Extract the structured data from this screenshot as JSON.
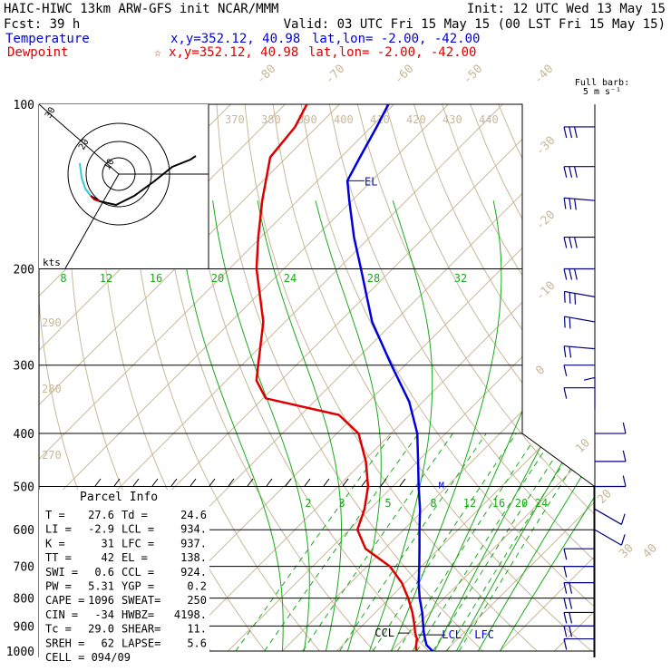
{
  "header": {
    "line1_left": "HAIC-HIWC 13km ARW-GFS init   NCAR/MMM",
    "line1_right": "Init: 12 UTC Wed 13 May 15",
    "line2_left": "Fcst:   39 h",
    "line2_right": "Valid: 03 UTC Fri 15 May 15 (00 LST Fri 15 May 15)",
    "temp_label": "Temperature",
    "temp_xy": "x,y=352.12, 40.98",
    "temp_latlon": "lat,lon= -2.00, -42.00",
    "dew_label": "Dewpoint",
    "dew_xy": "x,y=352.12, 40.98",
    "dew_latlon": "lat,lon= -2.00, -42.00",
    "star_glyph": "☆",
    "barb_note_1": "Full barb:",
    "barb_note_2": "5 m s⁻¹"
  },
  "colors": {
    "temperature": "#0000dd",
    "dewpoint": "#dd0000",
    "mixing_ratio": "#1aaa1a",
    "isotherm": "#c8b898",
    "gridline": "#000000",
    "barb": "#000080",
    "hodograph_tail": "#33cccc"
  },
  "chart_data": {
    "type": "line",
    "title": "Skew-T sounding",
    "ylabel": "",
    "yscale": "log",
    "ylim": [
      1000,
      100
    ],
    "pressure_ticks": [
      "100",
      "200",
      "300",
      "400",
      "500",
      "600",
      "700",
      "800",
      "900",
      "1000"
    ],
    "series": [
      {
        "name": "Temperature",
        "points": [
          {
            "p": 1000,
            "t": 27.6
          },
          {
            "p": 975,
            "t": 25.4
          },
          {
            "p": 950,
            "t": 24.0
          },
          {
            "p": 925,
            "t": 22.6
          },
          {
            "p": 900,
            "t": 21.3
          },
          {
            "p": 850,
            "t": 18.6
          },
          {
            "p": 800,
            "t": 15.5
          },
          {
            "p": 750,
            "t": 12.5
          },
          {
            "p": 700,
            "t": 9.6
          },
          {
            "p": 650,
            "t": 6.4
          },
          {
            "p": 600,
            "t": 2.9
          },
          {
            "p": 550,
            "t": -0.8
          },
          {
            "p": 500,
            "t": -5.2
          },
          {
            "p": 450,
            "t": -9.9
          },
          {
            "p": 400,
            "t": -15.2
          },
          {
            "p": 350,
            "t": -22.5
          },
          {
            "p": 300,
            "t": -32.5
          },
          {
            "p": 250,
            "t": -44.0
          },
          {
            "p": 200,
            "t": -55.8
          },
          {
            "p": 175,
            "t": -62.9
          },
          {
            "p": 150,
            "t": -70.5
          },
          {
            "p": 138,
            "t": -74.5
          },
          {
            "p": 125,
            "t": -76.5
          },
          {
            "p": 110,
            "t": -79.0
          },
          {
            "p": 100,
            "t": -81.0
          }
        ]
      },
      {
        "name": "Dewpoint",
        "points": [
          {
            "p": 1000,
            "t": 24.6
          },
          {
            "p": 975,
            "t": 23.5
          },
          {
            "p": 950,
            "t": 22.5
          },
          {
            "p": 925,
            "t": 21.0
          },
          {
            "p": 900,
            "t": 19.7
          },
          {
            "p": 850,
            "t": 16.8
          },
          {
            "p": 800,
            "t": 13.4
          },
          {
            "p": 750,
            "t": 9.4
          },
          {
            "p": 700,
            "t": 4.2
          },
          {
            "p": 650,
            "t": -3.5
          },
          {
            "p": 600,
            "t": -8.5
          },
          {
            "p": 550,
            "t": -11.0
          },
          {
            "p": 500,
            "t": -14.5
          },
          {
            "p": 450,
            "t": -19.5
          },
          {
            "p": 400,
            "t": -26.0
          },
          {
            "p": 370,
            "t": -33.0
          },
          {
            "p": 345,
            "t": -49.5
          },
          {
            "p": 320,
            "t": -54.5
          },
          {
            "p": 300,
            "t": -57.0
          },
          {
            "p": 250,
            "t": -64.0
          },
          {
            "p": 200,
            "t": -75.0
          },
          {
            "p": 175,
            "t": -80.5
          },
          {
            "p": 150,
            "t": -86.5
          },
          {
            "p": 125,
            "t": -93.0
          },
          {
            "p": 110,
            "t": -94.0
          },
          {
            "p": 100,
            "t": -96.0
          }
        ]
      }
    ],
    "isotherm_labels": [
      "-80",
      "-70",
      "-60",
      "-50",
      "-40",
      "-30",
      "-20",
      "-10",
      "0",
      "10",
      "20",
      "30",
      "40"
    ],
    "theta_labels": [
      "370",
      "380",
      "390",
      "400",
      "410",
      "420",
      "430",
      "440"
    ],
    "theta_left_labels": [
      "290",
      "280",
      "270"
    ],
    "mixing_ratio_labels_upper": [
      "8",
      "12",
      "16",
      "20",
      "24",
      "28",
      "32"
    ],
    "mixing_ratio_labels_lower": [
      "2",
      "3",
      "5",
      "8",
      "12",
      "16",
      "20",
      "24"
    ],
    "level_annotations": {
      "el": "EL",
      "ccl": "CCL",
      "lcl": "LCL",
      "lfc": "LFC",
      "m": "M"
    },
    "hodograph": {
      "units": "kts",
      "ring_labels": [
        "10",
        "20",
        "30"
      ]
    },
    "parcel_info": {
      "title": "Parcel Info",
      "rows": [
        [
          "T  =",
          "27.6",
          "Td =",
          "24.6"
        ],
        [
          "LI =",
          "-2.9",
          "LCL =",
          "934."
        ],
        [
          "K  =",
          "31",
          "LFC =",
          "937."
        ],
        [
          "TT =",
          "42",
          "EL =",
          "138."
        ],
        [
          "SWI =",
          "0.6",
          "CCL =",
          "924."
        ],
        [
          "PW =",
          "5.31",
          "YGP =",
          "0.2"
        ],
        [
          "CAPE =",
          "1096",
          "SWEAT=",
          "250"
        ],
        [
          "CIN =",
          "-34",
          "HWBZ=",
          "4198."
        ],
        [
          "Tc =",
          "29.0",
          "SHEAR=",
          "11."
        ],
        [
          "SREH =",
          "62",
          "LAPSE=",
          "5.6"
        ]
      ],
      "cell": "CELL = 094/09"
    },
    "wind_barbs": [
      {
        "p": 110,
        "dir": 90,
        "spd": 16
      },
      {
        "p": 130,
        "dir": 90,
        "spd": 16
      },
      {
        "p": 150,
        "dir": 95,
        "spd": 17
      },
      {
        "p": 175,
        "dir": 90,
        "spd": 17
      },
      {
        "p": 200,
        "dir": 90,
        "spd": 14
      },
      {
        "p": 225,
        "dir": 100,
        "spd": 13
      },
      {
        "p": 250,
        "dir": 100,
        "spd": 11
      },
      {
        "p": 280,
        "dir": 95,
        "spd": 9
      },
      {
        "p": 300,
        "dir": 90,
        "spd": 7
      },
      {
        "p": 330,
        "dir": 90,
        "spd": 5
      },
      {
        "p": 360,
        "dir": 180,
        "spd": 4
      },
      {
        "p": 400,
        "dir": 270,
        "spd": 3
      },
      {
        "p": 450,
        "dir": 270,
        "spd": 4
      },
      {
        "p": 500,
        "dir": 270,
        "spd": 4
      },
      {
        "p": 550,
        "dir": 300,
        "spd": 4
      },
      {
        "p": 600,
        "dir": 300,
        "spd": 3
      },
      {
        "p": 650,
        "dir": 90,
        "spd": 5
      },
      {
        "p": 700,
        "dir": 90,
        "spd": 7
      },
      {
        "p": 750,
        "dir": 90,
        "spd": 8
      },
      {
        "p": 800,
        "dir": 90,
        "spd": 9
      },
      {
        "p": 850,
        "dir": 90,
        "spd": 9
      },
      {
        "p": 900,
        "dir": 90,
        "spd": 8
      },
      {
        "p": 950,
        "dir": 90,
        "spd": 7
      }
    ]
  }
}
